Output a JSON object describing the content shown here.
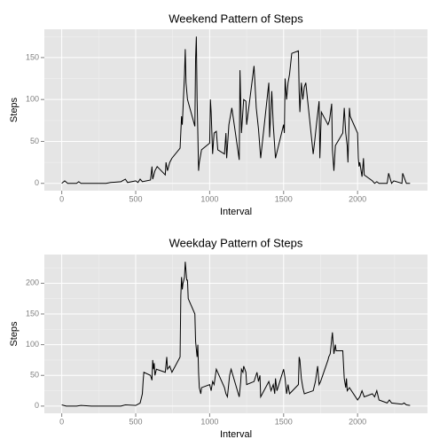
{
  "chart_data": [
    {
      "type": "line",
      "title": "Weekend Pattern of Steps",
      "x_label": "Interval",
      "y_label": "Steps",
      "color": "#000000",
      "grid": true,
      "xlim": [
        -117.75,
        2472.75
      ],
      "xticks": [
        0,
        500,
        1000,
        1500,
        2000
      ],
      "xticks_minor": [
        250,
        750,
        1250,
        1750,
        2250
      ],
      "ylim": [
        -8.75,
        183.75
      ],
      "yticks": [
        0,
        50,
        100,
        150
      ],
      "yticks_minor": [
        25,
        75,
        125,
        175
      ],
      "x": [
        0,
        20,
        40,
        100,
        115,
        130,
        200,
        300,
        330,
        400,
        430,
        445,
        500,
        515,
        530,
        545,
        600,
        610,
        615,
        630,
        645,
        700,
        705,
        715,
        730,
        745,
        800,
        810,
        815,
        830,
        835,
        840,
        850,
        900,
        905,
        910,
        915,
        920,
        925,
        930,
        945,
        1000,
        1005,
        1010,
        1020,
        1030,
        1045,
        1055,
        1100,
        1110,
        1115,
        1130,
        1150,
        1200,
        1205,
        1215,
        1230,
        1245,
        1250,
        1300,
        1315,
        1330,
        1345,
        1400,
        1405,
        1420,
        1430,
        1445,
        1500,
        1505,
        1510,
        1520,
        1530,
        1540,
        1555,
        1600,
        1605,
        1610,
        1620,
        1630,
        1640,
        1650,
        1700,
        1710,
        1725,
        1740,
        1745,
        1755,
        1800,
        1810,
        1825,
        1830,
        1840,
        1850,
        1900,
        1910,
        1920,
        1930,
        1935,
        1945,
        1950,
        2000,
        2005,
        2010,
        2015,
        2030,
        2040,
        2045,
        2100,
        2115,
        2130,
        2145,
        2200,
        2210,
        2230,
        2245,
        2300,
        2305,
        2330,
        2355
      ],
      "values": [
        0,
        3,
        0,
        0,
        2,
        0,
        0,
        0,
        1,
        2,
        5,
        1,
        3,
        1,
        5,
        2,
        4,
        20,
        5,
        15,
        20,
        10,
        25,
        15,
        25,
        30,
        42,
        80,
        70,
        130,
        160,
        120,
        100,
        68,
        150,
        175,
        100,
        60,
        15,
        25,
        40,
        48,
        100,
        85,
        35,
        60,
        62,
        40,
        35,
        60,
        30,
        70,
        90,
        28,
        135,
        60,
        100,
        98,
        70,
        140,
        90,
        65,
        30,
        120,
        55,
        110,
        70,
        30,
        70,
        60,
        125,
        100,
        120,
        130,
        155,
        158,
        110,
        85,
        120,
        100,
        115,
        120,
        35,
        50,
        75,
        98,
        30,
        85,
        70,
        75,
        95,
        40,
        15,
        45,
        60,
        90,
        60,
        45,
        25,
        90,
        80,
        60,
        30,
        20,
        25,
        8,
        30,
        10,
        3,
        0,
        2,
        0,
        0,
        12,
        0,
        3,
        0,
        12,
        0,
        0
      ]
    },
    {
      "type": "line",
      "title": "Weekday Pattern of Steps",
      "x_label": "Interval",
      "y_label": "Steps",
      "color": "#000000",
      "grid": true,
      "xlim": [
        -117.75,
        2472.75
      ],
      "xticks": [
        0,
        500,
        1000,
        1500,
        2000
      ],
      "xticks_minor": [
        250,
        750,
        1250,
        1750,
        2250
      ],
      "ylim": [
        -11.75,
        246.75
      ],
      "yticks": [
        0,
        50,
        100,
        150,
        200
      ],
      "yticks_minor": [
        25,
        75,
        125,
        175,
        225
      ],
      "x": [
        0,
        30,
        100,
        130,
        200,
        300,
        400,
        430,
        500,
        515,
        530,
        545,
        550,
        555,
        600,
        610,
        615,
        620,
        625,
        630,
        640,
        700,
        710,
        715,
        730,
        745,
        800,
        805,
        810,
        815,
        820,
        830,
        835,
        840,
        845,
        850,
        855,
        900,
        905,
        915,
        920,
        925,
        930,
        940,
        945,
        1000,
        1010,
        1020,
        1030,
        1045,
        1100,
        1110,
        1120,
        1135,
        1145,
        1200,
        1210,
        1215,
        1225,
        1230,
        1245,
        1250,
        1300,
        1320,
        1330,
        1340,
        1345,
        1400,
        1415,
        1430,
        1440,
        1445,
        1455,
        1500,
        1510,
        1520,
        1530,
        1540,
        1600,
        1605,
        1610,
        1620,
        1630,
        1640,
        1700,
        1715,
        1730,
        1740,
        1750,
        1800,
        1805,
        1815,
        1830,
        1840,
        1850,
        1855,
        1900,
        1910,
        1920,
        1925,
        1930,
        1945,
        2000,
        2015,
        2030,
        2045,
        2100,
        2115,
        2130,
        2145,
        2200,
        2215,
        2230,
        2300,
        2315,
        2330,
        2355
      ],
      "values": [
        2,
        0,
        0,
        1,
        0,
        0,
        0,
        2,
        1,
        3,
        5,
        20,
        40,
        55,
        50,
        42,
        75,
        60,
        70,
        50,
        60,
        55,
        80,
        60,
        65,
        55,
        80,
        180,
        210,
        190,
        200,
        210,
        235,
        220,
        205,
        205,
        175,
        150,
        105,
        80,
        100,
        55,
        30,
        20,
        30,
        35,
        25,
        40,
        35,
        60,
        30,
        20,
        15,
        50,
        60,
        15,
        40,
        60,
        55,
        65,
        55,
        35,
        40,
        55,
        40,
        50,
        15,
        40,
        25,
        35,
        20,
        45,
        25,
        60,
        45,
        20,
        35,
        20,
        35,
        80,
        75,
        45,
        30,
        20,
        25,
        40,
        65,
        35,
        40,
        75,
        80,
        85,
        120,
        85,
        100,
        90,
        90,
        45,
        30,
        45,
        25,
        30,
        10,
        15,
        25,
        15,
        20,
        15,
        25,
        10,
        5,
        10,
        5,
        3,
        5,
        2,
        1
      ]
    }
  ]
}
